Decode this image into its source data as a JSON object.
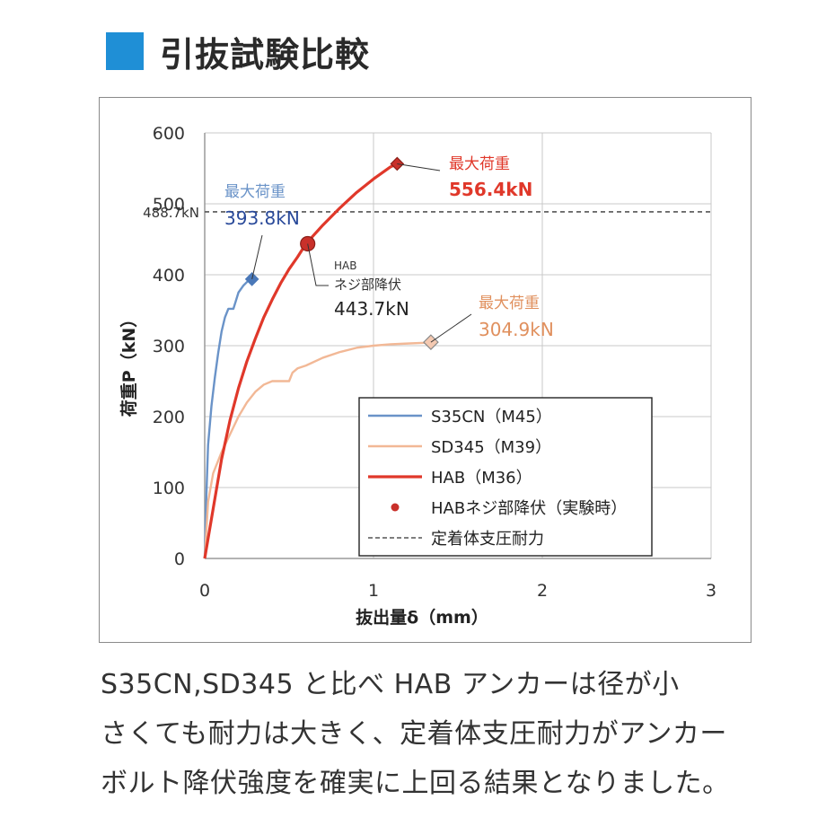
{
  "page": {
    "title": "引抜試験比較",
    "caption_lines": [
      "S35CN,SD345 と比べ HAB アンカーは径が小",
      "さくても耐力は大きく、定着体支圧耐力がアンカー",
      "ボルト降伏強度を確実に上回る結果となりました。"
    ],
    "colors": {
      "title_square": "#1f8fd6"
    }
  },
  "chart_data": {
    "type": "line",
    "xlabel": "抜出量δ（mm）",
    "ylabel": "荷重P（kN）",
    "xlim": [
      0,
      3
    ],
    "ylim": [
      0,
      600
    ],
    "xticks": [
      0,
      1,
      2,
      3
    ],
    "yticks": [
      0,
      100,
      200,
      300,
      400,
      500,
      600
    ],
    "grid": true,
    "legend_position": "bottom-right",
    "series": [
      {
        "name": "S35CN（M45）",
        "color": "#6a93c8",
        "x": [
          0,
          0.01,
          0.02,
          0.04,
          0.06,
          0.08,
          0.1,
          0.12,
          0.14,
          0.17,
          0.2,
          0.23,
          0.26,
          0.28
        ],
        "y": [
          0,
          90,
          160,
          215,
          255,
          290,
          320,
          340,
          352,
          352,
          375,
          385,
          392,
          393.8
        ]
      },
      {
        "name": "SD345（M39）",
        "color": "#f2b896",
        "x": [
          0,
          0.02,
          0.05,
          0.1,
          0.15,
          0.2,
          0.25,
          0.3,
          0.35,
          0.4,
          0.5,
          0.52,
          0.55,
          0.6,
          0.7,
          0.8,
          0.9,
          1.0,
          1.1,
          1.2,
          1.3,
          1.34
        ],
        "y": [
          0,
          80,
          120,
          150,
          175,
          200,
          220,
          235,
          245,
          250,
          250,
          262,
          268,
          272,
          283,
          291,
          297,
          300,
          302,
          303,
          304,
          304.9
        ]
      },
      {
        "name": "HAB（M36）",
        "color": "#e0382a",
        "x": [
          0,
          0.05,
          0.1,
          0.15,
          0.2,
          0.25,
          0.3,
          0.35,
          0.4,
          0.45,
          0.5,
          0.55,
          0.6,
          0.7,
          0.8,
          0.9,
          1.0,
          1.1,
          1.14
        ],
        "y": [
          0,
          70,
          140,
          195,
          240,
          278,
          310,
          340,
          365,
          388,
          408,
          425,
          443.7,
          470,
          494,
          516,
          535,
          552,
          556.4
        ]
      }
    ],
    "reference_line": {
      "name": "定着体支圧耐力",
      "y": 488.7,
      "label": "488.7kN"
    },
    "yield_point": {
      "name": "HABネジ部降伏（実験時）",
      "x": 0.61,
      "y": 443.7
    },
    "annotations": [
      {
        "title": "最大荷重",
        "value": "393.8kN",
        "x": 0.28,
        "y": 393.8,
        "title_color": "#6a93c8",
        "value_color": "#2a4a9a"
      },
      {
        "title": "最大荷重",
        "value": "556.4kN",
        "x": 1.14,
        "y": 556.4,
        "title_color": "#e0382a",
        "value_color": "#e0382a"
      },
      {
        "title": "最大荷重",
        "value": "304.9kN",
        "x": 1.34,
        "y": 304.9,
        "title_color": "#e0905e",
        "value_color": "#e0905e"
      },
      {
        "title": "HAB",
        "subtitle": "ネジ部降伏",
        "value": "443.7kN",
        "x": 0.61,
        "y": 443.7,
        "title_color": "#333333",
        "value_color": "#222222"
      }
    ]
  }
}
